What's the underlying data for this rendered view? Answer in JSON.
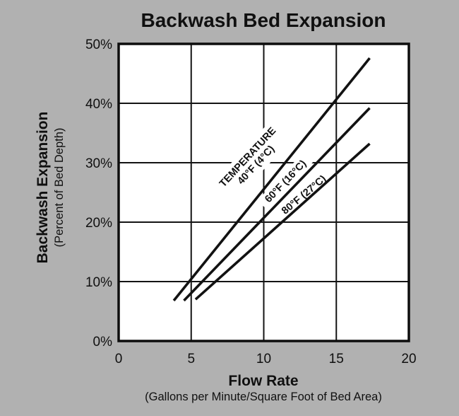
{
  "chart_data": {
    "type": "line",
    "title": "Backwash Bed Expansion",
    "xlabel": "Flow Rate",
    "xlabel_sub": "(Gallons per Minute/Square Foot of Bed Area)",
    "ylabel": "Backwash Expansion",
    "ylabel_sub": "(Percent of Bed Depth)",
    "xlim": [
      0,
      20
    ],
    "ylim": [
      0,
      50
    ],
    "x_ticks": [
      0,
      5,
      10,
      15,
      20
    ],
    "x_tick_labels": [
      "0",
      "5",
      "10",
      "15",
      "20"
    ],
    "y_ticks": [
      0,
      10,
      20,
      30,
      40,
      50
    ],
    "y_tick_labels": [
      "0%",
      "10%",
      "20%",
      "30%",
      "40%",
      "50%"
    ],
    "grid": true,
    "legend_position": "inline-rotated-labels",
    "series_header": "TEMPERATURE",
    "series": [
      {
        "name": "40°F (4°C)",
        "points": [
          [
            3.8,
            6.8
          ],
          [
            17.3,
            47.6
          ]
        ]
      },
      {
        "name": "60°F (16°C)",
        "points": [
          [
            4.5,
            6.8
          ],
          [
            17.3,
            39.2
          ]
        ]
      },
      {
        "name": "80°F (27°C)",
        "points": [
          [
            5.3,
            7.0
          ],
          [
            17.3,
            33.2
          ]
        ]
      }
    ],
    "colors": {
      "background": "#b1b1b1",
      "plot_background": "#ffffff",
      "line": "#121212",
      "text": "#101010"
    }
  }
}
